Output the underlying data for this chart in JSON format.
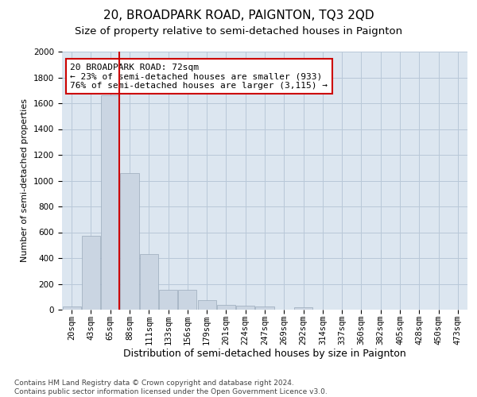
{
  "title": "20, BROADPARK ROAD, PAIGNTON, TQ3 2QD",
  "subtitle": "Size of property relative to semi-detached houses in Paignton",
  "xlabel": "Distribution of semi-detached houses by size in Paignton",
  "ylabel": "Number of semi-detached properties",
  "footnote": "Contains HM Land Registry data © Crown copyright and database right 2024.\nContains public sector information licensed under the Open Government Licence v3.0.",
  "bar_labels": [
    "20sqm",
    "43sqm",
    "65sqm",
    "88sqm",
    "111sqm",
    "133sqm",
    "156sqm",
    "179sqm",
    "201sqm",
    "224sqm",
    "247sqm",
    "269sqm",
    "292sqm",
    "314sqm",
    "337sqm",
    "360sqm",
    "382sqm",
    "405sqm",
    "428sqm",
    "450sqm",
    "473sqm"
  ],
  "bar_values": [
    25,
    570,
    1660,
    1060,
    430,
    155,
    155,
    75,
    35,
    30,
    25,
    0,
    20,
    0,
    0,
    0,
    0,
    0,
    0,
    0,
    0
  ],
  "bar_color": "#cad5e2",
  "bar_edge_color": "#9aaabb",
  "grid_color": "#b8c8d8",
  "background_color": "#dce6f0",
  "red_line_color": "#cc0000",
  "annotation_text": "20 BROADPARK ROAD: 72sqm\n← 23% of semi-detached houses are smaller (933)\n76% of semi-detached houses are larger (3,115) →",
  "annotation_box_color": "#ffffff",
  "annotation_box_edge": "#cc0000",
  "ylim": [
    0,
    2000
  ],
  "yticks": [
    0,
    200,
    400,
    600,
    800,
    1000,
    1200,
    1400,
    1600,
    1800,
    2000
  ],
  "title_fontsize": 11,
  "subtitle_fontsize": 9.5,
  "xlabel_fontsize": 9,
  "ylabel_fontsize": 8,
  "tick_fontsize": 7.5,
  "annotation_fontsize": 8,
  "footnote_fontsize": 6.5
}
